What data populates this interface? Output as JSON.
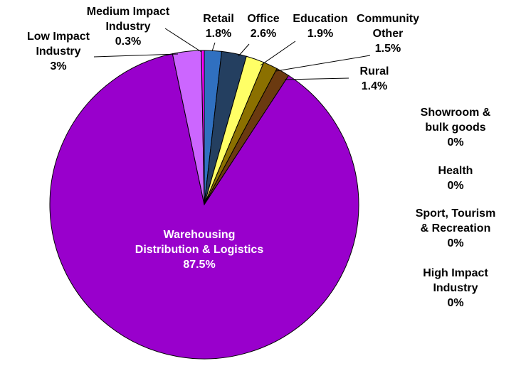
{
  "chart_data": {
    "type": "pie",
    "categories": [
      "Retail",
      "Office",
      "Education",
      "Community Other",
      "Rural",
      "Warehousing Distribution & Logistics",
      "Low Impact Industry",
      "Medium Impact Industry",
      "Showroom & bulk goods",
      "Health",
      "Sport, Tourism & Recreation",
      "High Impact Industry"
    ],
    "values": [
      1.8,
      2.6,
      1.9,
      1.5,
      1.4,
      87.5,
      3,
      0.3,
      0,
      0,
      0,
      0
    ],
    "value_labels": [
      "1.8%",
      "2.6%",
      "1.9%",
      "1.5%",
      "1.4%",
      "87.5%",
      "3%",
      "0.3%",
      "0%",
      "0%",
      "0%",
      "0%"
    ],
    "colors": [
      "#3070c0",
      "#243f60",
      "#ffff66",
      "#8b7000",
      "#6b3a10",
      "#9900cc",
      "#cc66ff",
      "#ff00ff",
      "#999999",
      "#999999",
      "#999999",
      "#999999"
    ]
  }
}
